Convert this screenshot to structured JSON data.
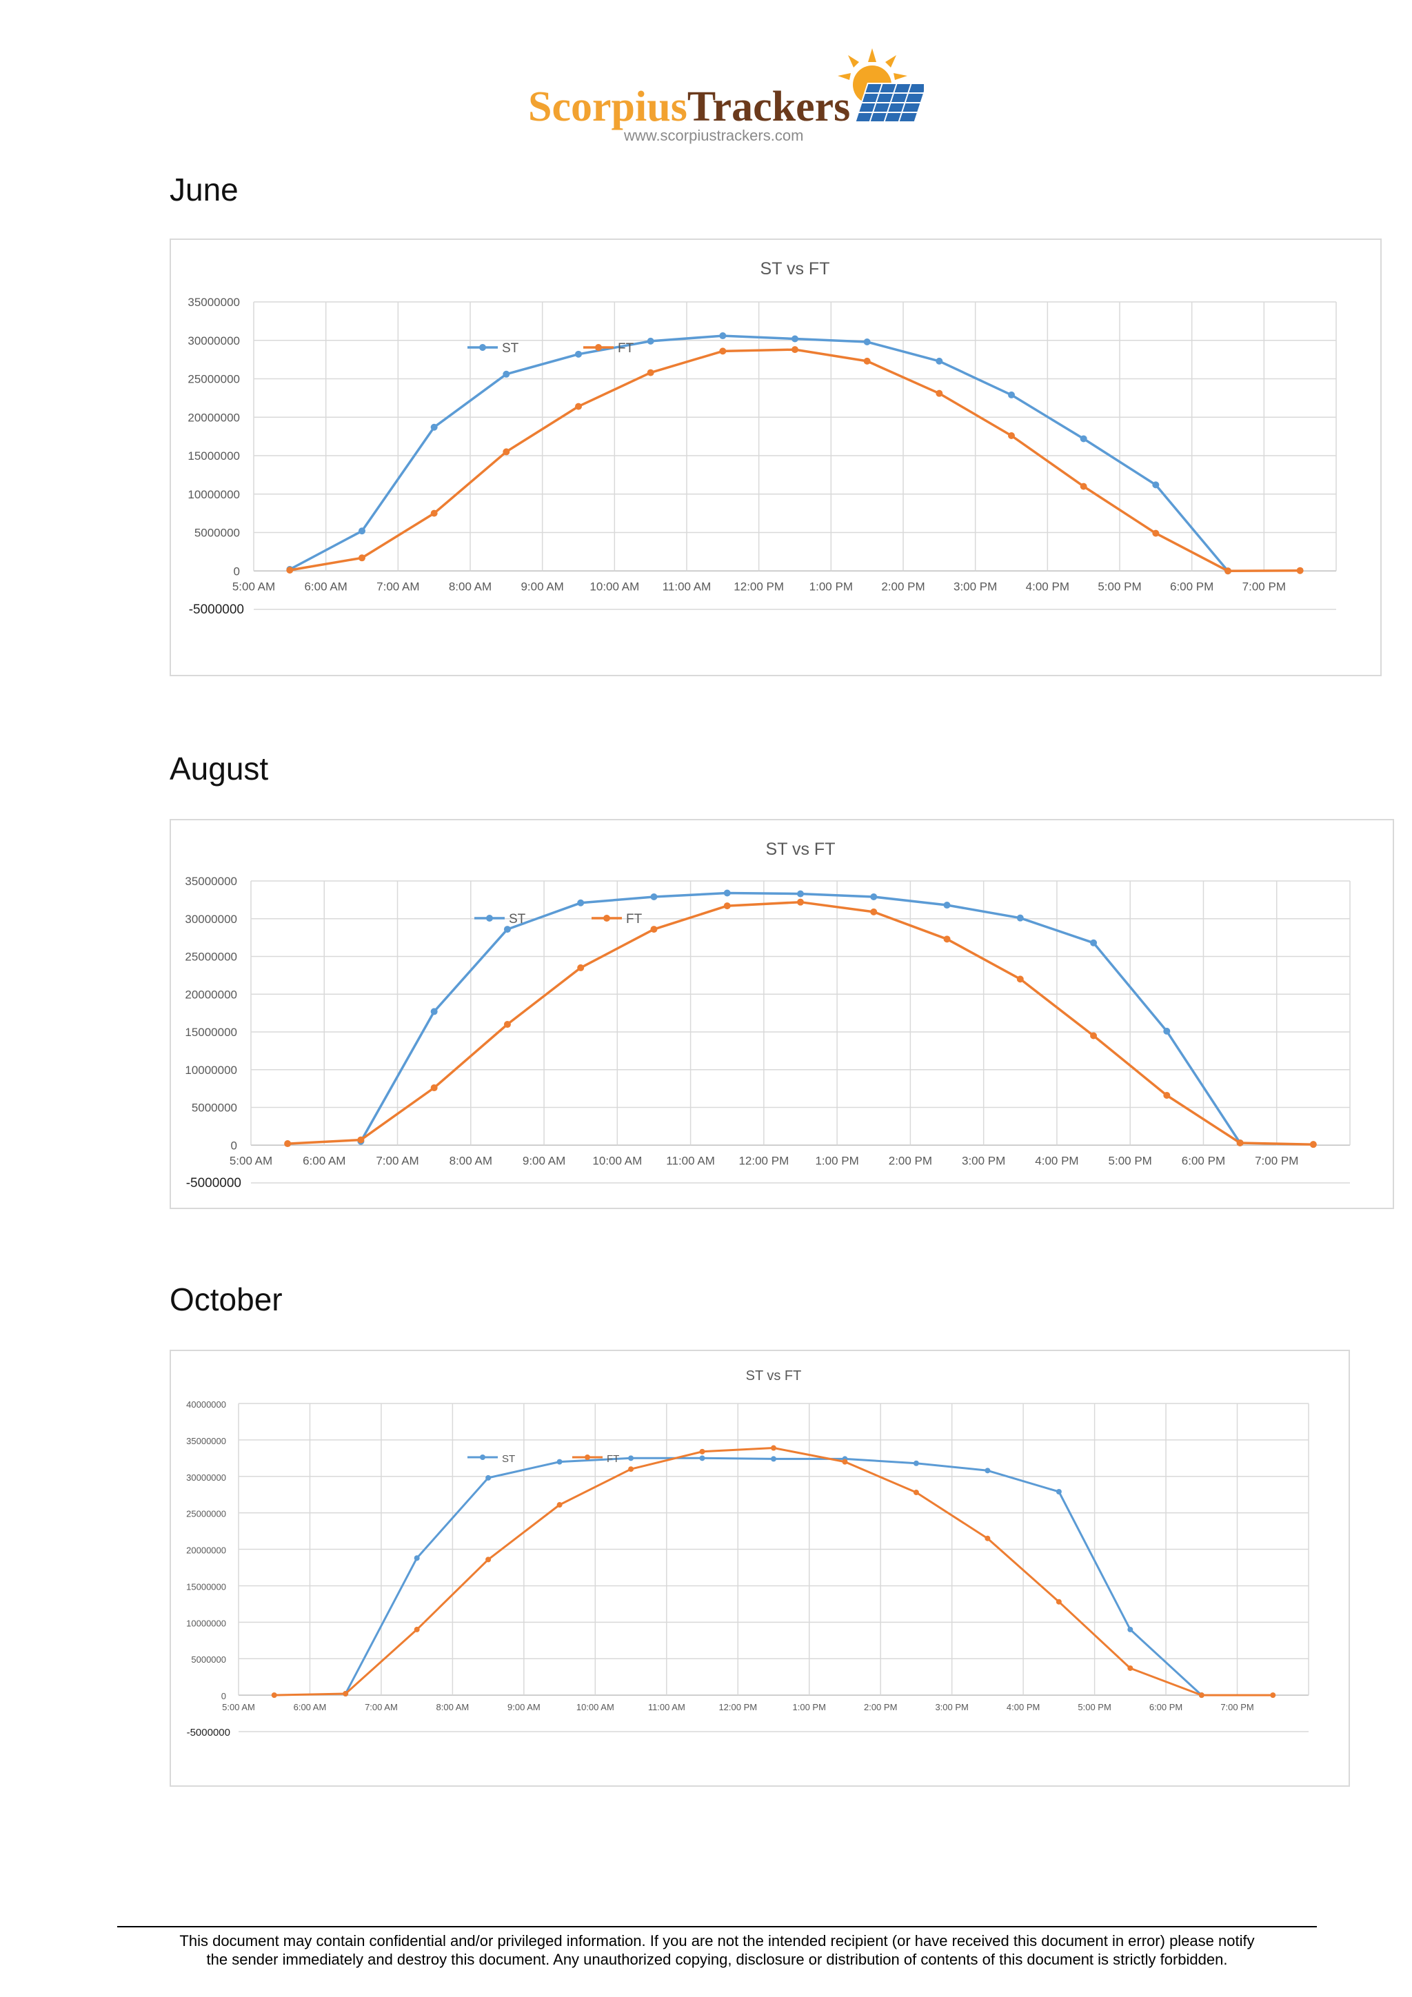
{
  "header": {
    "logo_word_1": "Scorpius",
    "logo_word_2": "Trackers",
    "logo_url": "www.scorpiustrackers.com",
    "logo_colors": {
      "orange": "#f2a230",
      "brown": "#6b3a1c",
      "panel_blue": "#2a6bb3",
      "sun": "#f5a623"
    }
  },
  "sections": [
    {
      "month": "June"
    },
    {
      "month": "August"
    },
    {
      "month": "October"
    }
  ],
  "chart_data": [
    {
      "type": "line",
      "title": "ST vs FT",
      "x_tick_labels": [
        "5:00 AM",
        "6:00 AM",
        "7:00 AM",
        "8:00 AM",
        "9:00 AM",
        "10:00 AM",
        "11:00 AM",
        "12:00 PM",
        "1:00 PM",
        "2:00 PM",
        "3:00 PM",
        "4:00 PM",
        "5:00 PM",
        "6:00 PM",
        "7:00 PM"
      ],
      "x": [
        5.5,
        6.5,
        7.5,
        8.5,
        9.5,
        10.5,
        11.5,
        12.5,
        13.5,
        14.5,
        15.5,
        16.5,
        17.5,
        18.5,
        19.5
      ],
      "ylim": [
        -5000000,
        35000000
      ],
      "y_ticks": [
        35000000,
        30000000,
        25000000,
        20000000,
        15000000,
        10000000,
        5000000,
        0,
        -5000000
      ],
      "series": [
        {
          "name": "ST",
          "color": "#5b9bd5",
          "values": [
            200000,
            5200000,
            18700000,
            25600000,
            28200000,
            29900000,
            30600000,
            30200000,
            29800000,
            27300000,
            22900000,
            17200000,
            11200000,
            0,
            null
          ]
        },
        {
          "name": "FT",
          "color": "#ed7d31",
          "values": [
            100000,
            1700000,
            7500000,
            15500000,
            21400000,
            25800000,
            28600000,
            28800000,
            27300000,
            23100000,
            17600000,
            11000000,
            4900000,
            0,
            50000
          ]
        }
      ],
      "legend": "inside-top-left",
      "grid": true
    },
    {
      "type": "line",
      "title": "ST vs FT",
      "x_tick_labels": [
        "5:00 AM",
        "6:00 AM",
        "7:00 AM",
        "8:00 AM",
        "9:00 AM",
        "10:00 AM",
        "11:00 AM",
        "12:00 PM",
        "1:00 PM",
        "2:00 PM",
        "3:00 PM",
        "4:00 PM",
        "5:00 PM",
        "6:00 PM",
        "7:00 PM"
      ],
      "x": [
        5.5,
        6.5,
        7.5,
        8.5,
        9.5,
        10.5,
        11.5,
        12.5,
        13.5,
        14.5,
        15.5,
        16.5,
        17.5,
        18.5,
        19.5
      ],
      "ylim": [
        -5000000,
        35000000
      ],
      "y_ticks": [
        35000000,
        30000000,
        25000000,
        20000000,
        15000000,
        10000000,
        5000000,
        0,
        -5000000
      ],
      "series": [
        {
          "name": "ST",
          "color": "#5b9bd5",
          "values": [
            null,
            500000,
            17700000,
            28600000,
            32100000,
            32900000,
            33400000,
            33300000,
            32900000,
            31800000,
            30100000,
            26800000,
            15100000,
            300000,
            null
          ]
        },
        {
          "name": "FT",
          "color": "#ed7d31",
          "values": [
            200000,
            700000,
            7600000,
            16000000,
            23500000,
            28600000,
            31700000,
            32200000,
            30900000,
            27300000,
            22000000,
            14500000,
            6600000,
            300000,
            100000
          ]
        }
      ],
      "legend": "inside-top-left",
      "grid": true
    },
    {
      "type": "line",
      "title": "ST vs FT",
      "x_tick_labels": [
        "5:00 AM",
        "6:00 AM",
        "7:00 AM",
        "8:00 AM",
        "9:00 AM",
        "10:00 AM",
        "11:00 AM",
        "12:00 PM",
        "1:00 PM",
        "2:00 PM",
        "3:00 PM",
        "4:00 PM",
        "5:00 PM",
        "6:00 PM",
        "7:00 PM"
      ],
      "x": [
        5.5,
        6.5,
        7.5,
        8.5,
        9.5,
        10.5,
        11.5,
        12.5,
        13.5,
        14.5,
        15.5,
        16.5,
        17.5,
        18.5,
        19.5
      ],
      "ylim": [
        -5000000,
        40000000
      ],
      "y_ticks": [
        40000000,
        35000000,
        30000000,
        25000000,
        20000000,
        15000000,
        10000000,
        5000000,
        0,
        -5000000
      ],
      "series": [
        {
          "name": "ST",
          "color": "#5b9bd5",
          "values": [
            null,
            200000,
            18800000,
            29800000,
            32000000,
            32500000,
            32500000,
            32400000,
            32400000,
            31800000,
            30800000,
            27900000,
            9000000,
            0,
            null
          ]
        },
        {
          "name": "FT",
          "color": "#ed7d31",
          "values": [
            0,
            200000,
            9000000,
            18600000,
            26100000,
            31000000,
            33400000,
            33900000,
            32000000,
            27800000,
            21500000,
            12800000,
            3700000,
            0,
            0
          ]
        }
      ],
      "legend": "inside-top-left",
      "grid": true
    }
  ],
  "footer": {
    "line1": "This document may contain confidential and/or privileged information. If you are not the intended recipient (or have received this document in error) please notify",
    "line2": "the sender immediately and destroy this document. Any unauthorized copying, disclosure or distribution of contents of this document is strictly forbidden."
  }
}
